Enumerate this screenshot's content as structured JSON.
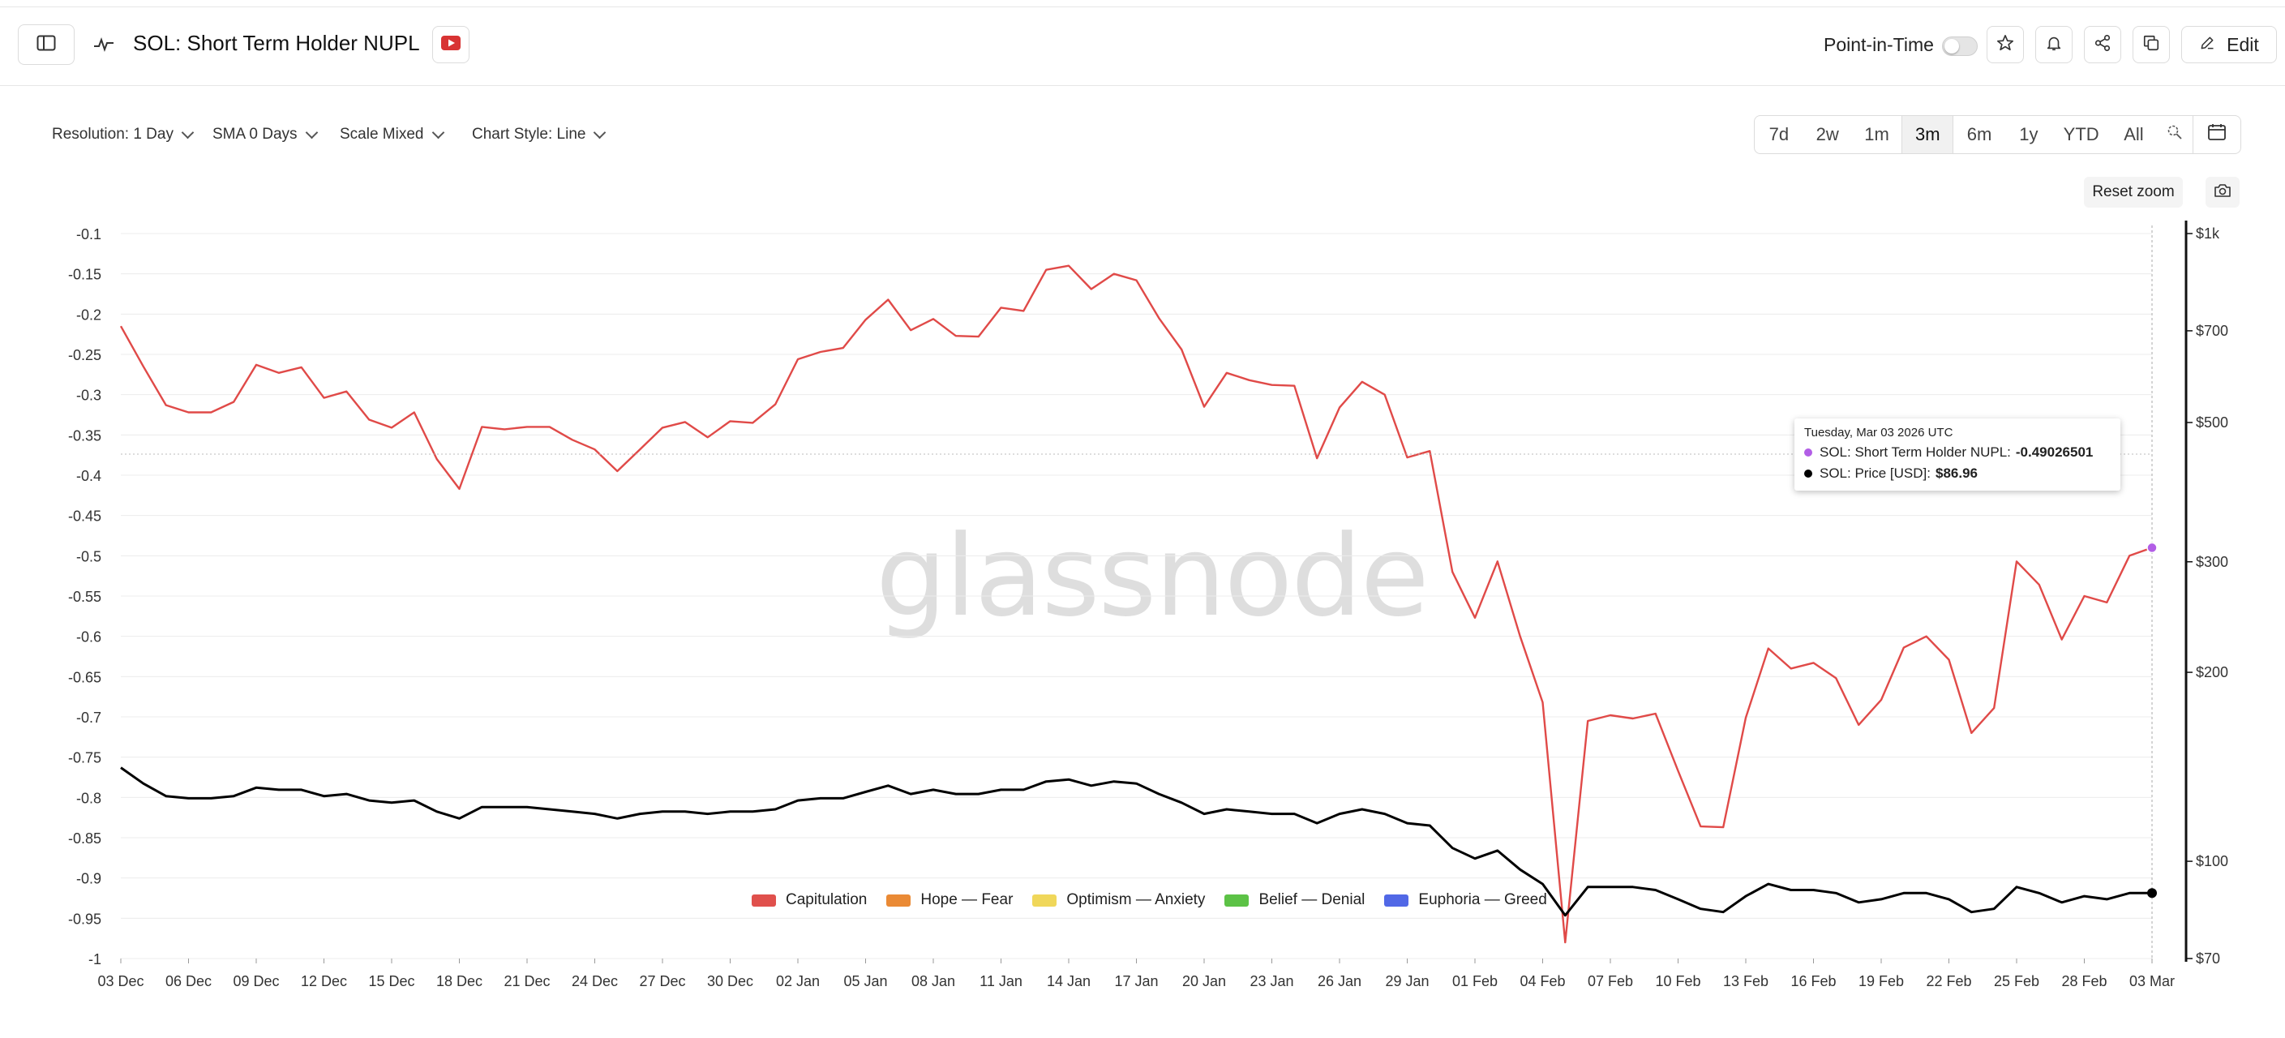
{
  "header": {
    "title": "SOL: Short Term Holder NUPL",
    "point_in_time_label": "Point-in-Time",
    "point_in_time_enabled": false,
    "edit_label": "Edit"
  },
  "controls": {
    "resolution": "Resolution: 1 Day",
    "sma": "SMA 0 Days",
    "scale": "Scale Mixed",
    "chart_style": "Chart Style: Line",
    "ranges": [
      "7d",
      "2w",
      "1m",
      "3m",
      "6m",
      "1y",
      "YTD",
      "All"
    ],
    "active_range": "3m",
    "reset_zoom": "Reset zoom"
  },
  "watermark": "glassnode",
  "tooltip": {
    "date": "Tuesday, Mar 03 2026 UTC",
    "rows": [
      {
        "label": "SOL: Short Term Holder NUPL:",
        "value": "-0.49026501",
        "color": "#b25ee6"
      },
      {
        "label": "SOL: Price [USD]:",
        "value": "$86.96",
        "color": "#000000"
      }
    ]
  },
  "legend": [
    {
      "label": "Capitulation",
      "color": "#e0504c"
    },
    {
      "label": "Hope — Fear",
      "color": "#ea8a35"
    },
    {
      "label": "Optimism — Anxiety",
      "color": "#f0d75a"
    },
    {
      "label": "Belief — Denial",
      "color": "#5cc246"
    },
    {
      "label": "Euphoria — Greed",
      "color": "#5168e6"
    }
  ],
  "chart_data": {
    "type": "line",
    "x_ticks": [
      "03 Dec",
      "06 Dec",
      "09 Dec",
      "12 Dec",
      "15 Dec",
      "18 Dec",
      "21 Dec",
      "24 Dec",
      "27 Dec",
      "30 Dec",
      "02 Jan",
      "05 Jan",
      "08 Jan",
      "11 Jan",
      "14 Jan",
      "17 Jan",
      "20 Jan",
      "23 Jan",
      "26 Jan",
      "29 Jan",
      "01 Feb",
      "04 Feb",
      "07 Feb",
      "10 Feb",
      "13 Feb",
      "16 Feb",
      "19 Feb",
      "22 Feb",
      "25 Feb",
      "28 Feb",
      "03 Mar"
    ],
    "y_left": {
      "ticks": [
        "-0.1",
        "-0.15",
        "-0.2",
        "-0.25",
        "-0.3",
        "-0.35",
        "-0.4",
        "-0.45",
        "-0.5",
        "-0.55",
        "-0.6",
        "-0.65",
        "-0.7",
        "-0.75",
        "-0.8",
        "-0.85",
        "-0.9",
        "-0.95",
        "-1"
      ],
      "min": -1,
      "max": -0.1
    },
    "y_right": {
      "ticks": [
        "$1k",
        "$700",
        "$500",
        "$300",
        "$200",
        "$100",
        "$70"
      ],
      "values": [
        1000,
        700,
        500,
        300,
        200,
        100,
        70
      ],
      "scale": "log",
      "min": 70,
      "max": 1000
    },
    "series": [
      {
        "name": "SOL: Short Term Holder NUPL",
        "axis": "left",
        "color": "#e04a48",
        "values": [
          -0.215,
          -0.265,
          -0.313,
          -0.322,
          -0.322,
          -0.309,
          -0.263,
          -0.273,
          -0.266,
          -0.304,
          -0.296,
          -0.331,
          -0.341,
          -0.322,
          -0.38,
          -0.417,
          -0.34,
          -0.343,
          -0.34,
          -0.34,
          -0.356,
          -0.368,
          -0.395,
          -0.368,
          -0.341,
          -0.334,
          -0.353,
          -0.333,
          -0.335,
          -0.312,
          -0.256,
          -0.247,
          -0.242,
          -0.207,
          -0.182,
          -0.22,
          -0.206,
          -0.227,
          -0.228,
          -0.192,
          -0.196,
          -0.145,
          -0.14,
          -0.169,
          -0.15,
          -0.158,
          -0.205,
          -0.244,
          -0.315,
          -0.273,
          -0.282,
          -0.288,
          -0.289,
          -0.379,
          -0.316,
          -0.284,
          -0.3,
          -0.378,
          -0.37,
          -0.52,
          -0.577,
          -0.507,
          -0.6,
          -0.682,
          -0.98,
          -0.705,
          -0.698,
          -0.702,
          -0.696,
          -0.767,
          -0.836,
          -0.837,
          -0.701,
          -0.615,
          -0.64,
          -0.633,
          -0.652,
          -0.71,
          -0.679,
          -0.614,
          -0.6,
          -0.629,
          -0.72,
          -0.689,
          -0.507,
          -0.536,
          -0.604,
          -0.55,
          -0.558,
          -0.5,
          -0.49
        ]
      },
      {
        "name": "SOL: Price [USD]",
        "axis": "right",
        "color": "#000000",
        "values": [
          141,
          133,
          127,
          126,
          126,
          127,
          131,
          130,
          130,
          127,
          128,
          125,
          124,
          125,
          120,
          117,
          122,
          122,
          122,
          121,
          120,
          119,
          117,
          119,
          120,
          120,
          119,
          120,
          120,
          121,
          125,
          126,
          126,
          129,
          132,
          128,
          130,
          128,
          128,
          130,
          130,
          134,
          135,
          132,
          134,
          133,
          128,
          124,
          119,
          121,
          120,
          119,
          119,
          115,
          119,
          121,
          119,
          115,
          114,
          105,
          101,
          104,
          97,
          92,
          82,
          91,
          91,
          91,
          90,
          87,
          84,
          83,
          88,
          92,
          90,
          90,
          89,
          86,
          87,
          89,
          89,
          87,
          83,
          84,
          91,
          89,
          86,
          88,
          87,
          89,
          89
        ]
      }
    ],
    "grid": true,
    "legend_position": "bottom-center"
  }
}
